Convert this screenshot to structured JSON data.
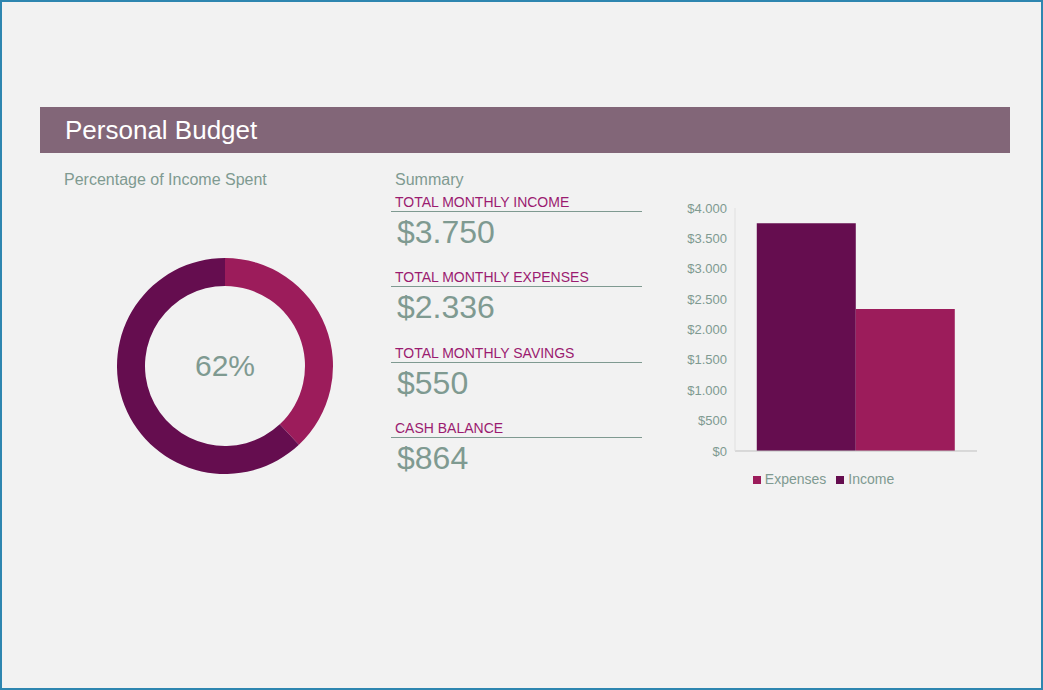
{
  "header": {
    "title": "Personal Budget"
  },
  "summary": {
    "title": "Summary",
    "items": [
      {
        "label": "TOTAL MONTHLY INCOME",
        "value": "$3.750"
      },
      {
        "label": "TOTAL MONTHLY EXPENSES",
        "value": "$2.336"
      },
      {
        "label": "TOTAL MONTHLY SAVINGS",
        "value": "$550"
      },
      {
        "label": "CASH BALANCE",
        "value": "$864"
      }
    ]
  },
  "chart_data": [
    {
      "type": "donut",
      "title": "Percentage of Income Spent",
      "annotation": "62%",
      "values": [
        38,
        62
      ],
      "colors": [
        "#9c1c5b",
        "#650d4f"
      ]
    },
    {
      "type": "bar",
      "categories": [
        null
      ],
      "series": [
        {
          "name": "Income",
          "color": "#650d4f",
          "values": [
            3750
          ]
        },
        {
          "name": "Expenses",
          "color": "#9c1c5b",
          "values": [
            2336
          ]
        }
      ],
      "ylim": [
        0,
        4000
      ],
      "yticks": [
        {
          "value": 0,
          "label": "$0"
        },
        {
          "value": 500,
          "label": "$500"
        },
        {
          "value": 1000,
          "label": "$1.000"
        },
        {
          "value": 1500,
          "label": "$1.500"
        },
        {
          "value": 2000,
          "label": "$2.000"
        },
        {
          "value": 2500,
          "label": "$2.500"
        },
        {
          "value": 3000,
          "label": "$3.000"
        },
        {
          "value": 3500,
          "label": "$3.500"
        },
        {
          "value": 4000,
          "label": "$4.000"
        }
      ],
      "grid": false,
      "legend": "bottom",
      "tick_labels": "y"
    }
  ]
}
